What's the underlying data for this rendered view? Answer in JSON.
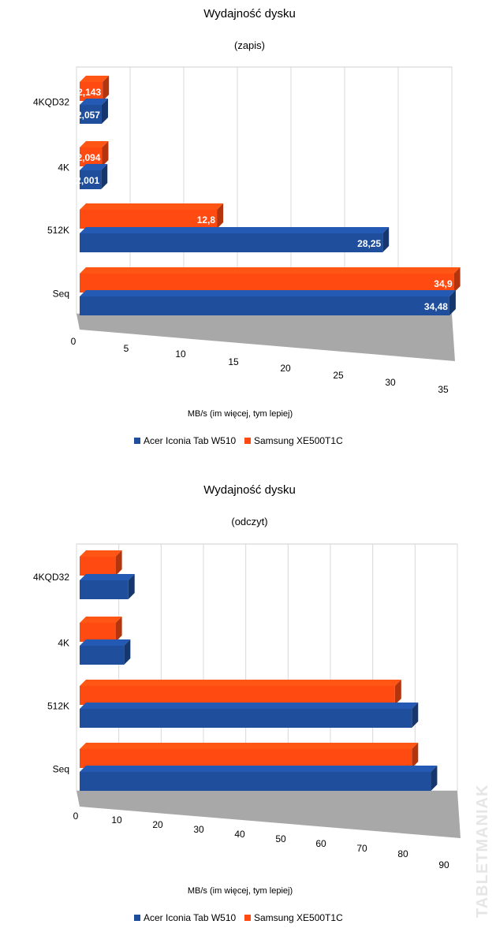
{
  "colors": {
    "acer": "#1f4e9c",
    "samsung": "#ff4a12"
  },
  "watermark": "TABLETMANIAK",
  "chart_data": [
    {
      "type": "bar",
      "orientation": "horizontal",
      "three_d": true,
      "title": "Wydajność dysku",
      "subtitle": "(zapis)",
      "xlabel": "MB/s (im więcej, tym lepiej)",
      "categories": [
        "4KQD32",
        "4K",
        "512K",
        "Seq"
      ],
      "xlim": [
        0,
        35
      ],
      "xticks": [
        0,
        5,
        10,
        15,
        20,
        25,
        30,
        35
      ],
      "grid": true,
      "legend_position": "bottom",
      "data_labels": true,
      "series": [
        {
          "name": "Acer Iconia Tab W510",
          "values": [
            2.057,
            2.001,
            28.25,
            34.48
          ],
          "labels": [
            "2,057",
            "2,001",
            "28,25",
            "34,48"
          ]
        },
        {
          "name": "Samsung XE500T1C",
          "values": [
            2.143,
            2.094,
            12.8,
            34.9
          ],
          "labels": [
            "2,143",
            "2,094",
            "12,8",
            "34,9"
          ]
        }
      ]
    },
    {
      "type": "bar",
      "orientation": "horizontal",
      "three_d": true,
      "title": "Wydajność dysku",
      "subtitle": "(odczyt)",
      "xlabel": "MB/s (im więcej, tym lepiej)",
      "categories": [
        "4KQD32",
        "4K",
        "512K",
        "Seq"
      ],
      "xlim": [
        0,
        90
      ],
      "xticks": [
        0,
        10,
        20,
        30,
        40,
        50,
        60,
        70,
        80,
        90
      ],
      "grid": true,
      "legend_position": "bottom",
      "data_labels": false,
      "series": [
        {
          "name": "Acer Iconia Tab W510",
          "values": [
            11.5,
            10.5,
            78.5,
            83
          ]
        },
        {
          "name": "Samsung XE500T1C",
          "values": [
            8.5,
            8.5,
            74.5,
            78.5
          ]
        }
      ]
    }
  ]
}
